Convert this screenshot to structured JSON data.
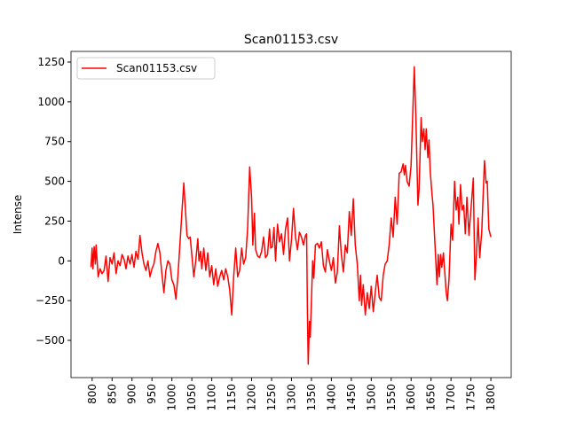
{
  "chart_data": {
    "type": "line",
    "title": "Scan01153.csv",
    "y_label": "Intense",
    "x": [
      797,
      800,
      802,
      805,
      808,
      810,
      815,
      820,
      825,
      830,
      835,
      840,
      845,
      850,
      855,
      860,
      865,
      870,
      875,
      880,
      885,
      890,
      895,
      900,
      905,
      910,
      915,
      920,
      925,
      930,
      935,
      940,
      945,
      950,
      955,
      960,
      965,
      970,
      975,
      980,
      985,
      990,
      995,
      1000,
      1005,
      1010,
      1015,
      1020,
      1025,
      1030,
      1035,
      1038,
      1042,
      1046,
      1050,
      1055,
      1060,
      1065,
      1068,
      1072,
      1075,
      1080,
      1085,
      1090,
      1095,
      1100,
      1105,
      1110,
      1115,
      1120,
      1125,
      1130,
      1135,
      1140,
      1145,
      1150,
      1155,
      1160,
      1165,
      1170,
      1175,
      1180,
      1185,
      1190,
      1195,
      1200,
      1203,
      1207,
      1210,
      1215,
      1220,
      1225,
      1230,
      1235,
      1240,
      1245,
      1248,
      1252,
      1256,
      1260,
      1265,
      1270,
      1275,
      1280,
      1285,
      1290,
      1295,
      1300,
      1305,
      1310,
      1315,
      1320,
      1325,
      1330,
      1335,
      1338,
      1340,
      1342,
      1345,
      1347,
      1350,
      1353,
      1356,
      1360,
      1365,
      1370,
      1375,
      1380,
      1385,
      1390,
      1395,
      1400,
      1405,
      1410,
      1415,
      1420,
      1425,
      1430,
      1435,
      1440,
      1445,
      1450,
      1455,
      1460,
      1465,
      1470,
      1473,
      1476,
      1480,
      1485,
      1490,
      1495,
      1500,
      1505,
      1510,
      1515,
      1520,
      1525,
      1530,
      1535,
      1540,
      1545,
      1550,
      1555,
      1560,
      1565,
      1570,
      1575,
      1580,
      1583,
      1586,
      1590,
      1595,
      1600,
      1605,
      1608,
      1612,
      1617,
      1620,
      1625,
      1628,
      1632,
      1635,
      1638,
      1642,
      1645,
      1648,
      1652,
      1655,
      1665,
      1668,
      1671,
      1674,
      1677,
      1681,
      1688,
      1691,
      1695,
      1700,
      1704,
      1709,
      1713,
      1717,
      1720,
      1724,
      1728,
      1732,
      1736,
      1740,
      1745,
      1750,
      1756,
      1760,
      1764,
      1768,
      1772,
      1777,
      1784,
      1788,
      1791,
      1795,
      1800
    ],
    "series": [
      {
        "name": "Scan01153.csv",
        "color": "#ff0000",
        "values": [
          -40,
          80,
          -50,
          90,
          -20,
          100,
          -100,
          -50,
          -80,
          -60,
          30,
          -130,
          20,
          -20,
          50,
          -80,
          0,
          -30,
          40,
          10,
          -50,
          30,
          -20,
          40,
          -40,
          60,
          10,
          160,
          50,
          -20,
          -60,
          0,
          -100,
          -50,
          -20,
          60,
          110,
          50,
          -80,
          -200,
          -60,
          0,
          -20,
          -120,
          -150,
          -240,
          -100,
          100,
          300,
          490,
          280,
          160,
          140,
          150,
          40,
          -100,
          0,
          140,
          0,
          60,
          -50,
          80,
          -60,
          50,
          -100,
          -30,
          -150,
          -50,
          -160,
          -100,
          -60,
          -120,
          -50,
          -100,
          -180,
          -340,
          -100,
          80,
          -100,
          -60,
          80,
          -20,
          20,
          200,
          590,
          400,
          100,
          300,
          70,
          30,
          20,
          60,
          150,
          20,
          40,
          200,
          80,
          90,
          210,
          0,
          230,
          120,
          170,
          40,
          200,
          270,
          0,
          130,
          330,
          150,
          70,
          180,
          150,
          100,
          160,
          170,
          -320,
          -650,
          -380,
          -480,
          -250,
          0,
          -110,
          100,
          110,
          80,
          120,
          -30,
          -70,
          70,
          0,
          -60,
          20,
          -140,
          -70,
          220,
          40,
          -70,
          100,
          50,
          310,
          160,
          390,
          100,
          -20,
          -250,
          -90,
          -280,
          -150,
          -340,
          -200,
          -300,
          -160,
          -320,
          -200,
          -90,
          -230,
          -250,
          -90,
          -20,
          0,
          100,
          270,
          150,
          400,
          230,
          550,
          560,
          610,
          540,
          600,
          500,
          470,
          600,
          1000,
          1220,
          900,
          350,
          450,
          900,
          750,
          830,
          700,
          830,
          650,
          760,
          560,
          430,
          350,
          -150,
          40,
          -100,
          40,
          -40,
          50,
          -200,
          -250,
          -120,
          230,
          130,
          500,
          320,
          400,
          230,
          480,
          320,
          350,
          170,
          400,
          160,
          320,
          520,
          -120,
          40,
          270,
          20,
          180,
          630,
          490,
          500,
          200,
          150
        ]
      }
    ],
    "xlim": [
      747,
      1851
    ],
    "ylim": [
      -734,
      1317
    ],
    "xticks": [
      800,
      850,
      900,
      950,
      1000,
      1050,
      1100,
      1150,
      1200,
      1250,
      1300,
      1350,
      1400,
      1450,
      1500,
      1550,
      1600,
      1650,
      1700,
      1750,
      1800
    ],
    "yticks": [
      {
        "value": -500,
        "label": "−500"
      },
      {
        "value": -250,
        "label": "−250"
      },
      0,
      250,
      500,
      750,
      1000,
      1250
    ],
    "legend": "upper left"
  }
}
